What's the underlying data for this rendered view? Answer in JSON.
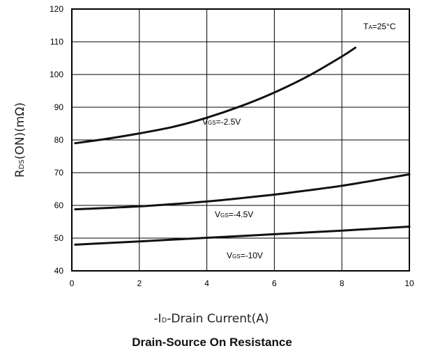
{
  "chart_data": {
    "type": "line",
    "title": "Drain-Source On Resistance",
    "xlabel": {
      "prefix": "-I",
      "sub": "D",
      "suffix": "-Drain Current(A)"
    },
    "ylabel": {
      "prefix": "R",
      "sub": "DS",
      "suffix": "(ON)(mΩ)"
    },
    "xlim": [
      0,
      10
    ],
    "ylim": [
      40,
      120
    ],
    "xticks": [
      0,
      2,
      4,
      6,
      8,
      10
    ],
    "yticks": [
      40,
      50,
      60,
      70,
      80,
      90,
      100,
      110,
      120
    ],
    "grid": true,
    "annotation": {
      "prefix": "T",
      "sub": "A",
      "suffix": "=25°C"
    },
    "series": [
      {
        "name": "VGS=-2.5V",
        "label": {
          "prefix": "V",
          "sub": "GS",
          "suffix": "=-2.5V"
        },
        "x": [
          0.1,
          1,
          2,
          3,
          4,
          5,
          6,
          7,
          8,
          8.4
        ],
        "y": [
          79,
          80.3,
          82,
          84,
          86.8,
          90.3,
          94.5,
          99.5,
          105.5,
          108.2
        ]
      },
      {
        "name": "VGS=-4.5V",
        "label": {
          "prefix": "V",
          "sub": "GS",
          "suffix": "=-4.5V"
        },
        "x": [
          0.1,
          1,
          2,
          3,
          4,
          5,
          6,
          7,
          8,
          9,
          10
        ],
        "y": [
          58.8,
          59.2,
          59.7,
          60.4,
          61.2,
          62.2,
          63.3,
          64.6,
          66.0,
          67.7,
          69.5
        ]
      },
      {
        "name": "VGS=-10V",
        "label": {
          "prefix": "V",
          "sub": "GS",
          "suffix": "=-10V"
        },
        "x": [
          0.1,
          2,
          4,
          6,
          8,
          10
        ],
        "y": [
          48,
          49,
          50.1,
          51.2,
          52.3,
          53.5
        ]
      }
    ]
  }
}
